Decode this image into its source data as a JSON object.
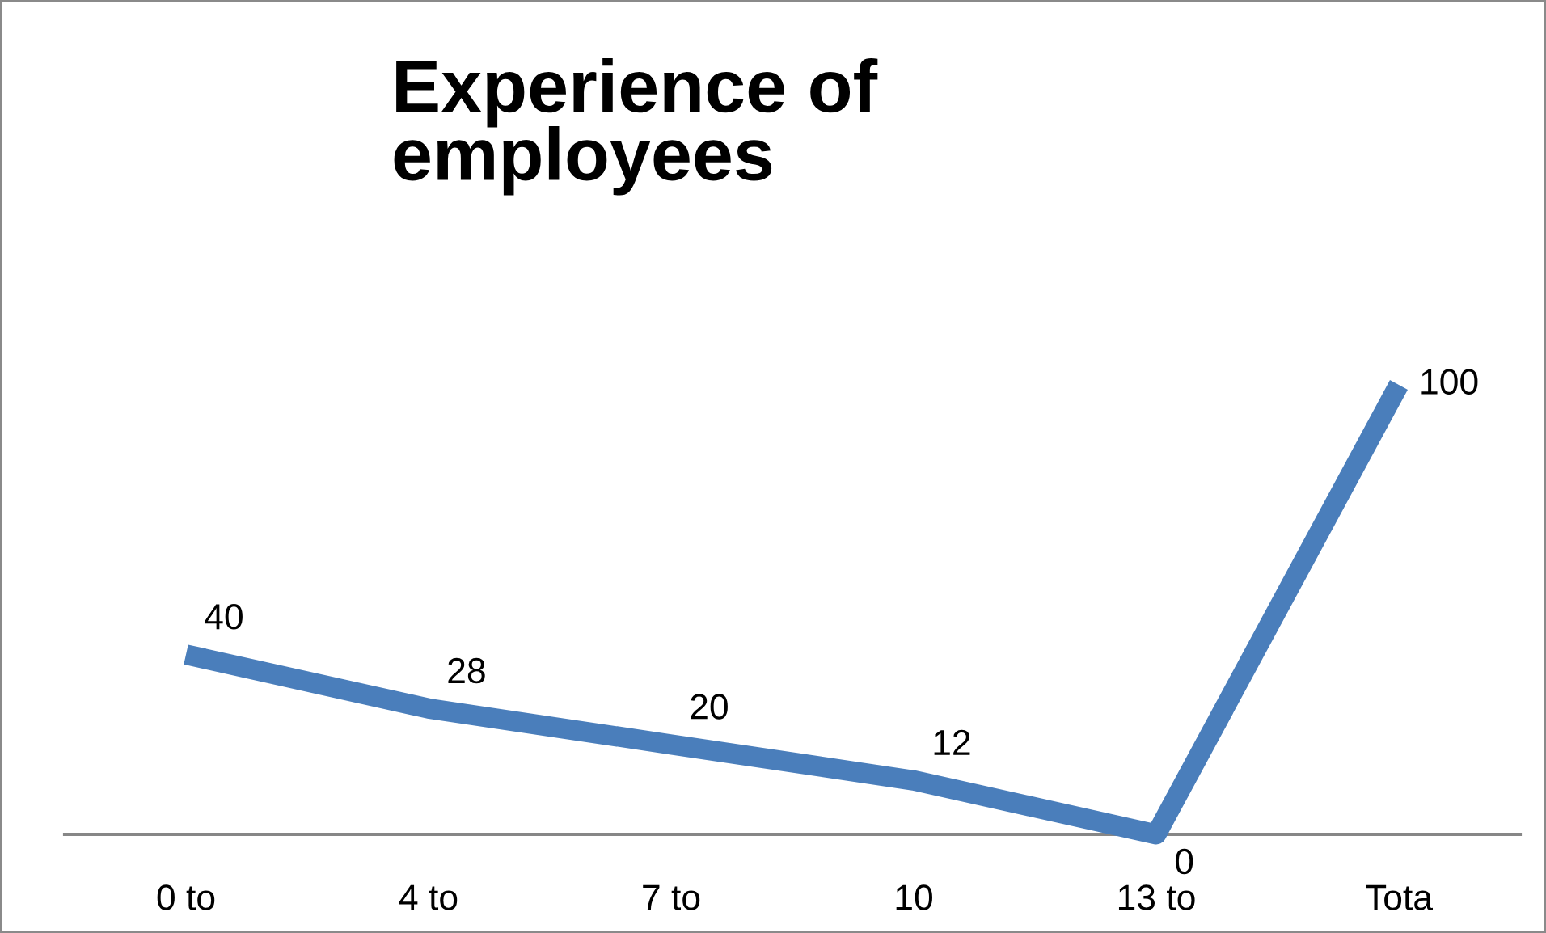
{
  "chart_data": {
    "type": "line",
    "title": "Experience of employees",
    "categories": [
      "0 to",
      "4 to",
      "7 to",
      "10",
      "13 to",
      "Tota"
    ],
    "series": [
      {
        "color": "#4a7ebb",
        "values": [
          40,
          28,
          20,
          12,
          0,
          100
        ]
      }
    ],
    "data_labels": true
  }
}
